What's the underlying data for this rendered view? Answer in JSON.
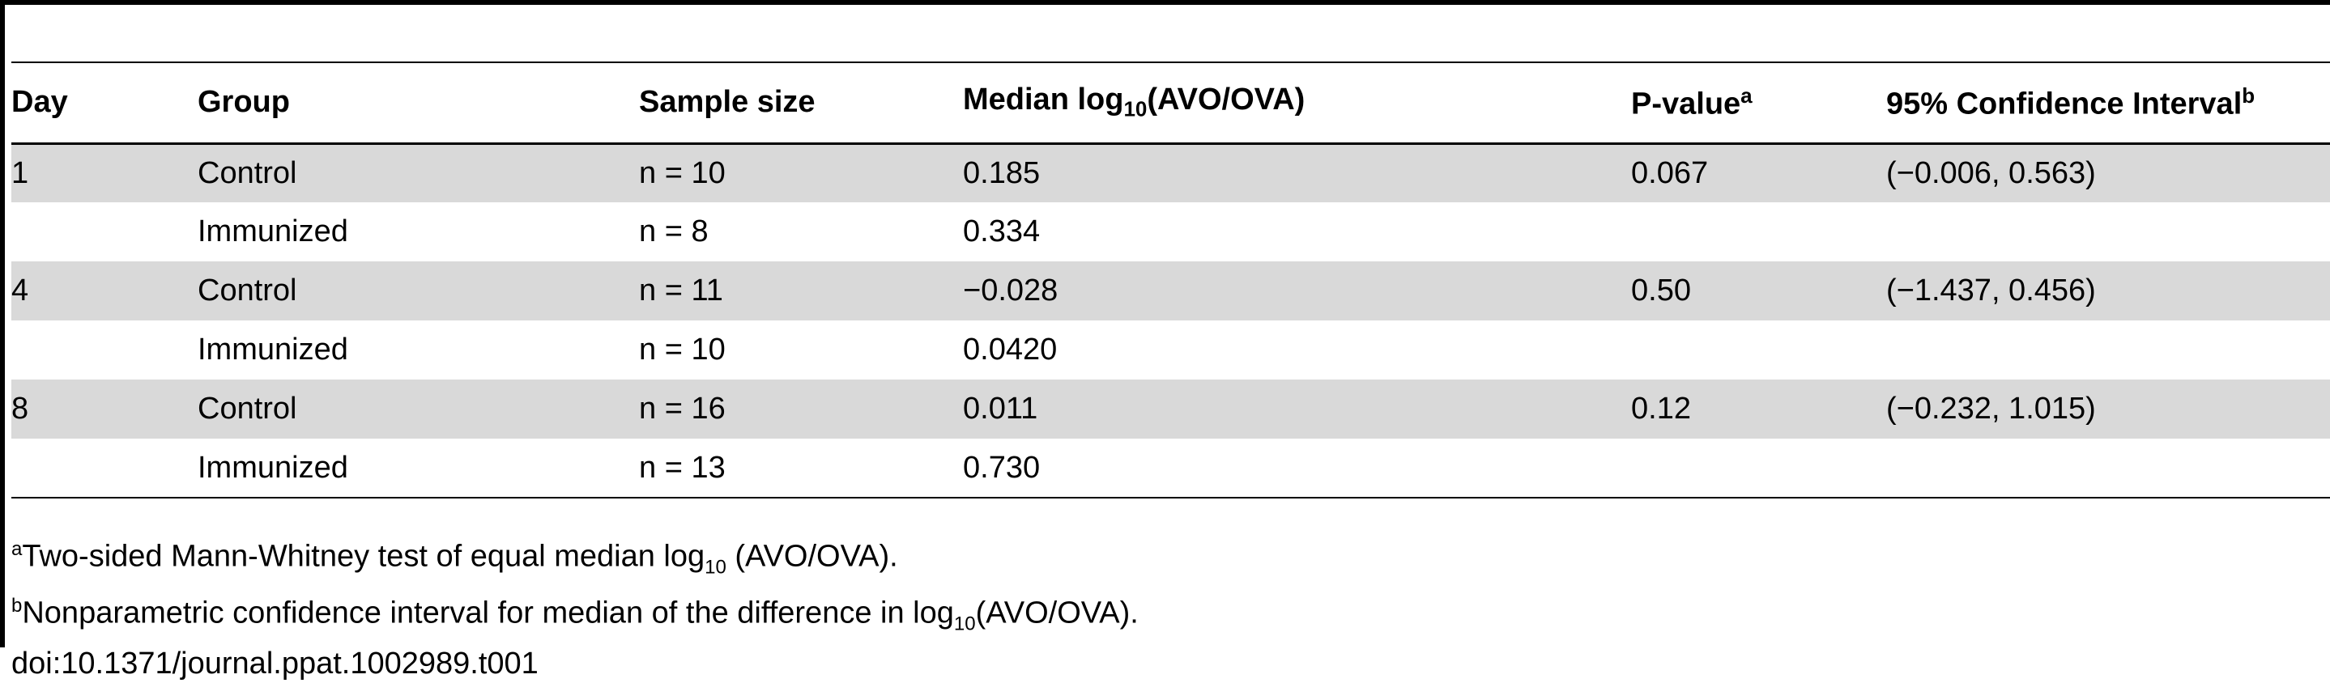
{
  "table": {
    "headers": {
      "day": "Day",
      "group": "Group",
      "sample_size": "Sample size",
      "median_prefix": "Median log",
      "median_sub": "10",
      "median_suffix": "(AVO/OVA)",
      "p_value": "P-value",
      "p_value_sup": "a",
      "ci": "95% Confidence Interval",
      "ci_sup": "b"
    },
    "rows": [
      {
        "day": "1",
        "group": "Control",
        "sample_size": "n = 10",
        "median": "0.185",
        "p_value": "0.067",
        "ci": "(−0.006, 0.563)"
      },
      {
        "day": "",
        "group": "Immunized",
        "sample_size": "n = 8",
        "median": "0.334",
        "p_value": "",
        "ci": ""
      },
      {
        "day": "4",
        "group": "Control",
        "sample_size": "n = 11",
        "median": "−0.028",
        "p_value": "0.50",
        "ci": "(−1.437, 0.456)"
      },
      {
        "day": "",
        "group": "Immunized",
        "sample_size": "n = 10",
        "median": "0.0420",
        "p_value": "",
        "ci": ""
      },
      {
        "day": "8",
        "group": "Control",
        "sample_size": "n = 16",
        "median": "0.011",
        "p_value": "0.12",
        "ci": "(−0.232, 1.015)"
      },
      {
        "day": "",
        "group": "Immunized",
        "sample_size": "n = 13",
        "median": "0.730",
        "p_value": "",
        "ci": ""
      }
    ]
  },
  "footnotes": {
    "a_mark": "a",
    "a_prefix": "Two-sided Mann-Whitney test of equal median log",
    "a_sub": "10",
    "a_suffix": " (AVO/OVA).",
    "b_mark": "b",
    "b_prefix": "Nonparametric confidence interval for median of the difference in log",
    "b_sub": "10",
    "b_suffix": "(AVO/OVA).",
    "doi": "doi:10.1371/journal.ppat.1002989.t001"
  },
  "colors": {
    "shaded_row": "#d9d9d9",
    "rule": "#000000"
  }
}
